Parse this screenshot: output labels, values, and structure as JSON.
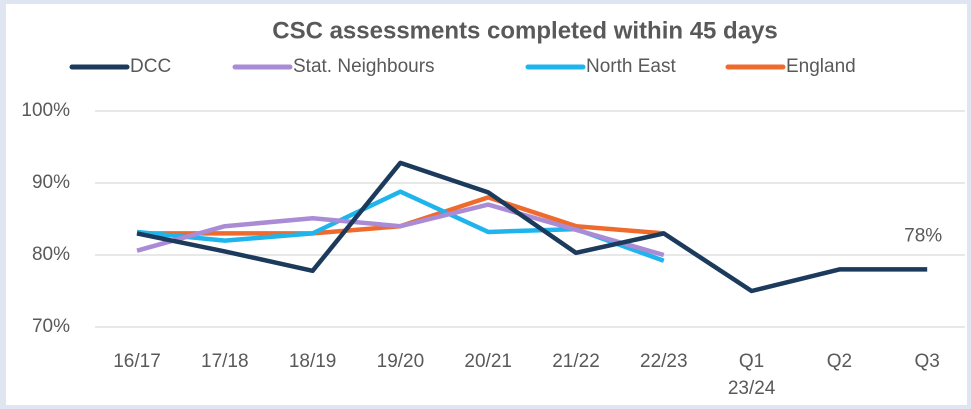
{
  "chart_data": {
    "type": "line",
    "title": "CSC assessments completed within 45 days",
    "categories": [
      "16/17",
      "17/18",
      "18/19",
      "19/20",
      "20/21",
      "21/22",
      "22/23",
      "Q1 23/24",
      "Q2",
      "Q3"
    ],
    "series": [
      {
        "name": "DCC",
        "color": "#1b3a5c",
        "values": [
          83,
          80.5,
          77.8,
          92.8,
          88.7,
          80.3,
          83,
          75,
          78,
          78
        ],
        "value_labels": [
          null,
          null,
          null,
          null,
          null,
          null,
          null,
          null,
          null,
          "78%"
        ]
      },
      {
        "name": "Stat. Neighbours",
        "color": "#a98bd6",
        "values": [
          80.6,
          84,
          85.1,
          84,
          87,
          83.5,
          80,
          null,
          null,
          null
        ]
      },
      {
        "name": "North East",
        "color": "#1fb5ec",
        "values": [
          83.2,
          82,
          83,
          88.8,
          83.2,
          83.6,
          79.2,
          null,
          null,
          null
        ]
      },
      {
        "name": "England",
        "color": "#ee6b2d",
        "values": [
          83,
          83,
          83,
          84,
          88,
          84,
          83,
          null,
          null,
          null
        ]
      }
    ],
    "ylim": [
      70,
      100
    ],
    "yticks": [
      {
        "value": 70,
        "label": "70%"
      },
      {
        "value": 80,
        "label": "80%"
      },
      {
        "value": 90,
        "label": "90%"
      },
      {
        "value": 100,
        "label": "100%"
      }
    ],
    "grid": true,
    "legend": "top"
  }
}
